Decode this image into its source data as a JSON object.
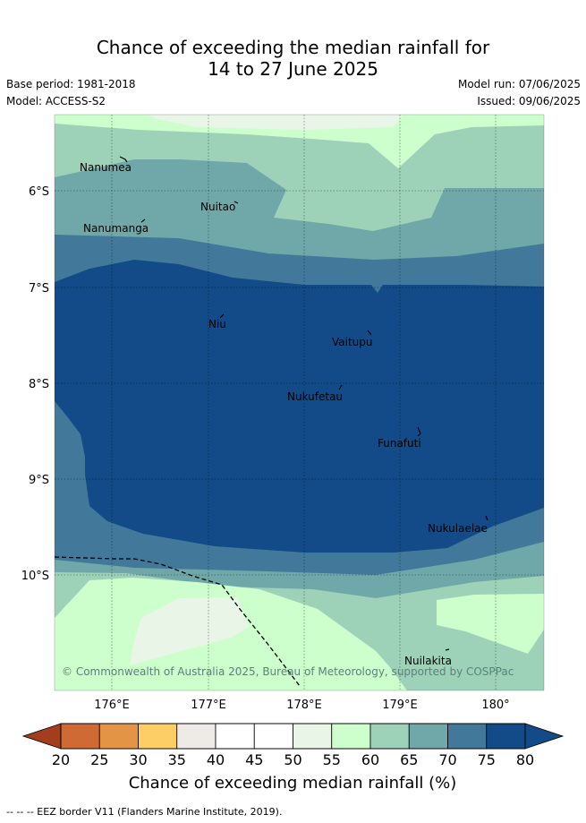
{
  "title": {
    "line1": "Chance of exceeding the median rainfall for",
    "line2": "14 to 27 June 2025"
  },
  "meta": {
    "base_period": "Base period: 1981-2018",
    "model": "Model: ACCESS-S2",
    "model_run": "Model run: 07/06/2025",
    "issued": "Issued: 09/06/2025"
  },
  "map": {
    "lat_labels": [
      "6°S",
      "7°S",
      "8°S",
      "9°S",
      "10°S"
    ],
    "lon_labels": [
      "176°E",
      "177°E",
      "178°E",
      "179°E",
      "180°"
    ],
    "places": [
      "Nanumea",
      "Nuitao",
      "Nanumanga",
      "Niu",
      "Vaitupu",
      "Nukufetau",
      "Funafuti",
      "Nukulaelae",
      "Nuilakita"
    ],
    "copyright": "© Commonwealth of Australia 2025, Bureau of Meteorology, supported by COSPPac"
  },
  "colorbar": {
    "ticks": [
      "20",
      "25",
      "30",
      "35",
      "40",
      "45",
      "50",
      "55",
      "60",
      "65",
      "70",
      "75",
      "80"
    ],
    "colors": [
      "#b34a25",
      "#d06a35",
      "#e39545",
      "#fdcd66",
      "#eeeae6",
      "#ffffff",
      "#ffffff",
      "#e9f5e7",
      "#ccffcc",
      "#9dd2b9",
      "#70a8aa",
      "#42799b",
      "#124b87"
    ],
    "under_color": "#a33e1c",
    "over_color": "#124b87",
    "label": "Chance of exceeding median rainfall (%)"
  },
  "legend": {
    "eez": "--  --  -- EEZ border V11 (Flanders Marine Institute, 2019)."
  }
}
